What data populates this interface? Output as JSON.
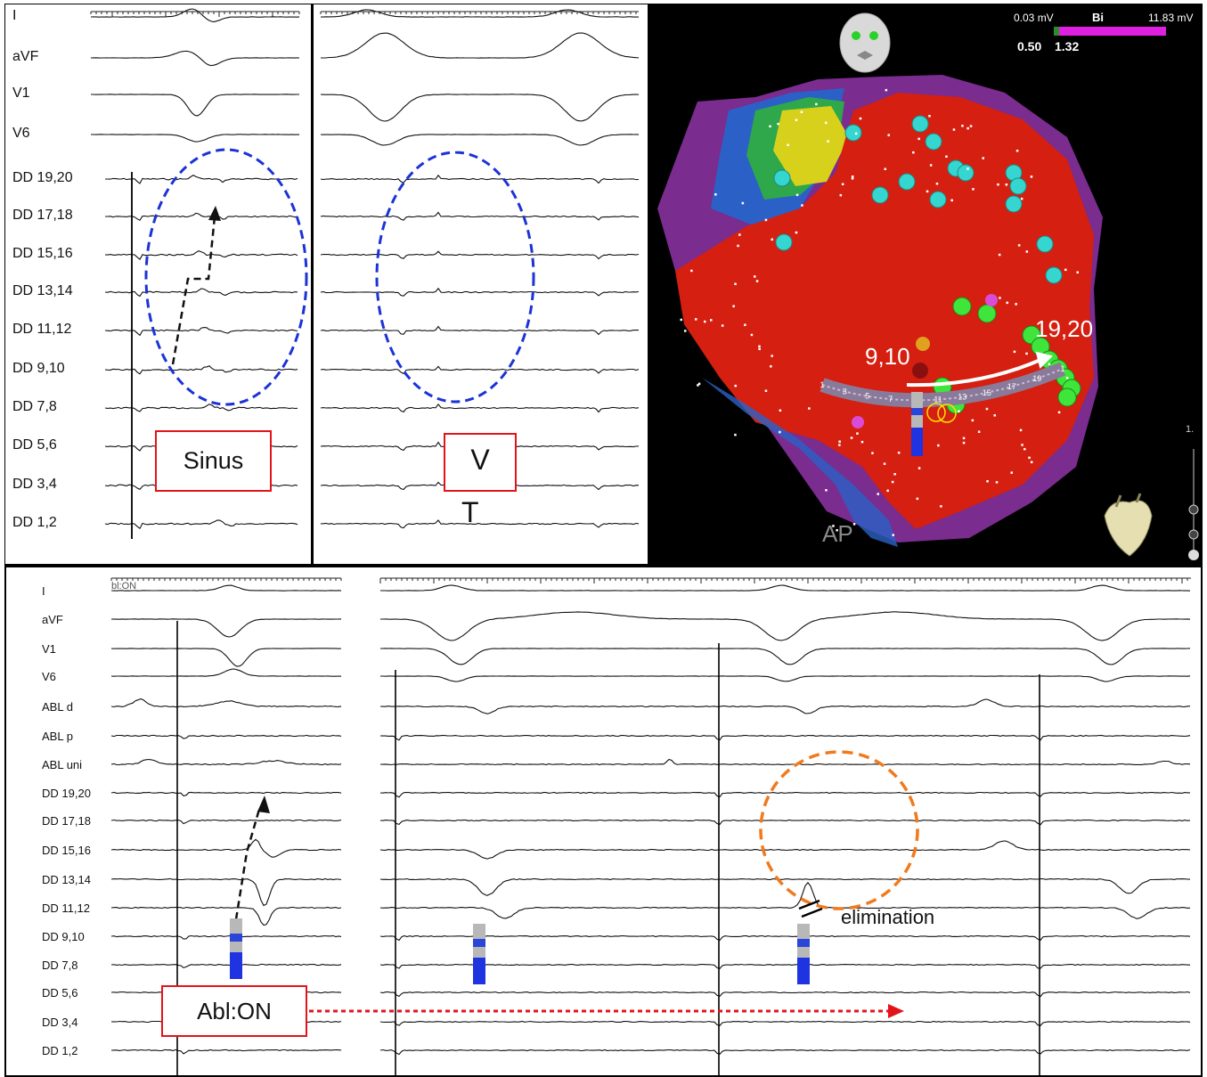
{
  "top_left": {
    "leads": [
      "I",
      "aVF",
      "V1",
      "V6",
      "DD 19,20",
      "DD 17,18",
      "DD 15,16",
      "DD 13,14",
      "DD 11,12",
      "DD 9,10",
      "DD 7,8",
      "DD 5,6",
      "DD 3,4",
      "DD 1,2"
    ],
    "box_label": "Sinus"
  },
  "top_middle": {
    "box_label_line1": "V",
    "box_label_line2": "T"
  },
  "map": {
    "scale_min": "0.03 mV",
    "scale_mode": "Bi",
    "scale_max": "11.83 mV",
    "threshold_low": "0.50",
    "threshold_high": "1.32",
    "label_start": "9,10",
    "label_end": "19,20",
    "view_label": "AP",
    "catheter_numbers": [
      "1",
      "3",
      "5",
      "7",
      "9",
      "11",
      "13",
      "15",
      "17",
      "19",
      "1"
    ],
    "edge_number": "1.",
    "colors": {
      "surface": "#d51f10",
      "border": "#7a2c8f",
      "lesion": "#36d6d0",
      "tag": "#3fe53a"
    }
  },
  "bottom": {
    "leads": [
      "I",
      "aVF",
      "V1",
      "V6",
      "ABL d",
      "ABL p",
      "ABL uni",
      "DD 19,20",
      "DD 17,18",
      "DD 15,16",
      "DD 13,14",
      "DD 11,12",
      "DD 9,10",
      "DD 7,8",
      "DD 5,6",
      "DD 3,4",
      "DD 1,2"
    ],
    "top_marker": "bl:ON",
    "box_label": "Abl:ON",
    "elimination_label": "elimination"
  }
}
